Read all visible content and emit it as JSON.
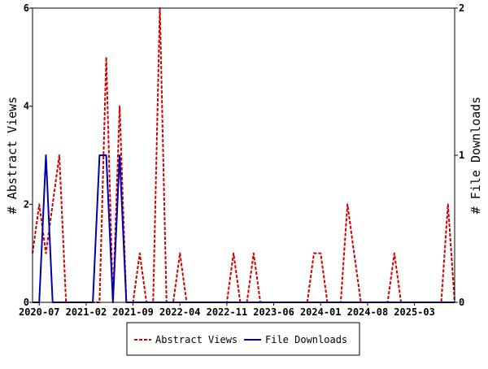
{
  "chart_data": {
    "type": "line",
    "x_start": "2020-06",
    "x_end": "2025-09",
    "x_tick_labels": [
      "2020-07",
      "2021-02",
      "2021-09",
      "2022-04",
      "2022-11",
      "2023-06",
      "2024-01",
      "2024-08",
      "2025-03"
    ],
    "y_left": {
      "label": "# Abstract Views",
      "range": [
        0,
        6
      ],
      "ticks": [
        "0",
        "2",
        "4",
        "6"
      ]
    },
    "y_right": {
      "label": "# File Downloads",
      "range": [
        0,
        2
      ],
      "ticks": [
        "0",
        "1",
        "2"
      ]
    },
    "legend_position": "bottom",
    "series": [
      {
        "name": "Abstract Views",
        "axis": "left",
        "color": "#cc0000",
        "style": "dashed",
        "values": [
          1,
          2,
          1,
          2,
          3,
          0,
          0,
          0,
          0,
          0,
          0,
          5,
          0,
          4,
          0,
          0,
          1,
          0,
          0,
          6,
          0,
          0,
          1,
          0,
          0,
          0,
          0,
          0,
          0,
          0,
          1,
          0,
          0,
          1,
          0,
          0,
          0,
          0,
          0,
          0,
          0,
          0,
          1,
          1,
          0,
          0,
          0,
          2,
          1,
          0,
          0,
          0,
          0,
          0,
          1,
          0,
          0,
          0,
          0,
          0,
          0,
          0,
          2,
          0
        ]
      },
      {
        "name": "File Downloads",
        "axis": "right",
        "color": "#0000aa",
        "style": "solid",
        "values": [
          0,
          0,
          1,
          0,
          0,
          0,
          0,
          0,
          0,
          0,
          1,
          1,
          0,
          1,
          0,
          0,
          0,
          0,
          0,
          0,
          0,
          0,
          0,
          0,
          0,
          0,
          0,
          0,
          0,
          0,
          0,
          0,
          0,
          0,
          0,
          0,
          0,
          0,
          0,
          0,
          0,
          0,
          0,
          0,
          0,
          0,
          0,
          0,
          0,
          0,
          0,
          0,
          0,
          0,
          0,
          0,
          0,
          0,
          0,
          0,
          0,
          0,
          0,
          0
        ]
      }
    ]
  }
}
